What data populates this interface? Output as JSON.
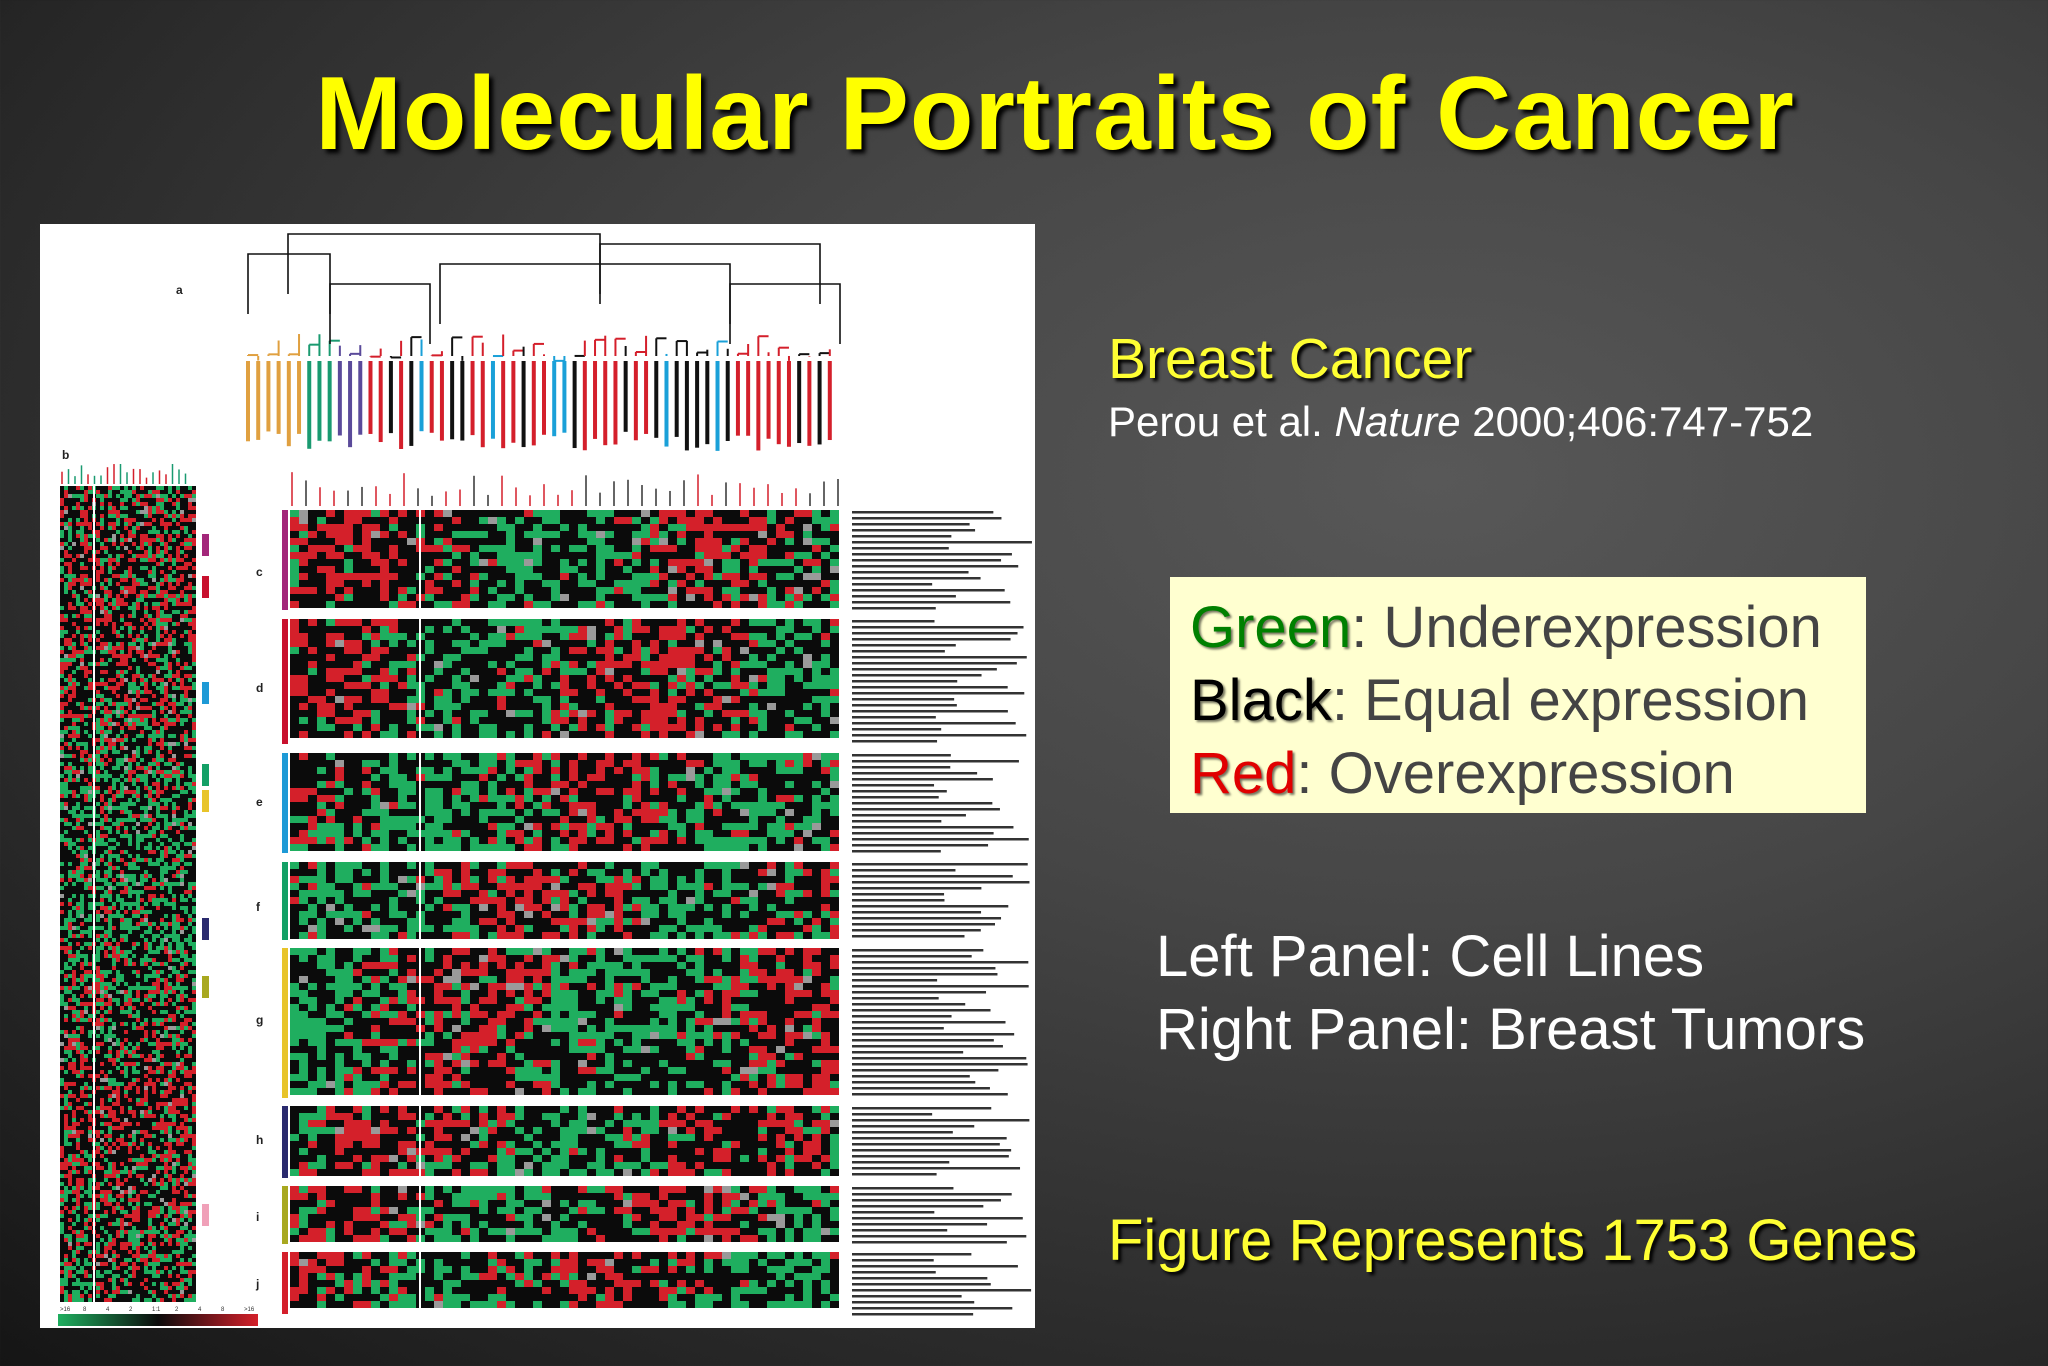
{
  "slide": {
    "title": "Molecular Portraits of Cancer"
  },
  "figure": {
    "panel_labels": [
      "a",
      "b",
      "c",
      "d",
      "e",
      "f",
      "g",
      "h",
      "i",
      "j"
    ],
    "scale_labels": [
      ">16",
      "8",
      "4",
      "2",
      "1:1",
      "2",
      "4",
      "8",
      ">16"
    ],
    "colors": {
      "green": "#1fae5f",
      "black": "#0b0b0b",
      "red": "#d4202a",
      "grey": "#9a9a9a",
      "cluster_c": "#a3267a",
      "cluster_d": "#c8102e",
      "cluster_e_blue": "#1e9ad6",
      "cluster_e_green": "#13a066",
      "cluster_e_yellow": "#e8c42a",
      "cluster_g": "#2a2a6e",
      "cluster_h": "#a8a820",
      "cluster_j": "#f0a0b8",
      "dendro_orange": "#e0a040",
      "dendro_red": "#d41f2b",
      "dendro_cyan": "#1aa0d8",
      "dendro_teal": "#1a9a70",
      "dendro_purple": "#5a4a9a"
    }
  },
  "text": {
    "breast_cancer": "Breast Cancer",
    "citation_authors": "Perou et al.",
    "citation_journal": "Nature",
    "citation_ref": "2000;406:747-752",
    "legend": {
      "green_key": "Green",
      "green_desc": ": Underexpression",
      "black_key": "Black",
      "black_desc": ": Equal expression",
      "red_key": "Red",
      "red_desc": ": Overexpression"
    },
    "left_panel": "Left Panel: Cell Lines",
    "right_panel": "Right Panel: Breast Tumors",
    "genes": "Figure Represents 1753 Genes"
  }
}
